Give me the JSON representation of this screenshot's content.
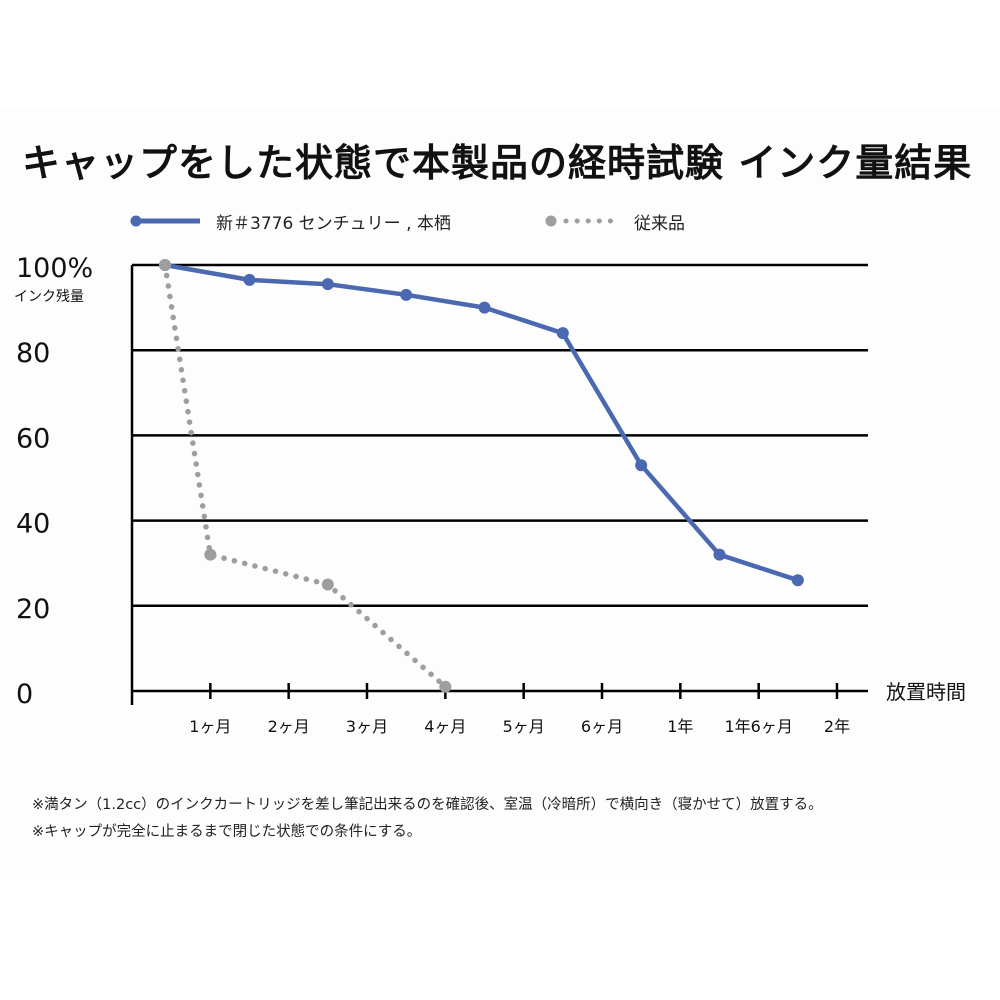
{
  "title": "キャップをした状態で本製品の経時試験 インク量結果",
  "colors": {
    "new_series": "#4a69b0",
    "old_series": "#9e9e9e",
    "axis": "#000000"
  },
  "legend": {
    "position": "top-left",
    "new_label": "新＃3776 センチュリー , 本栖",
    "old_label": "従来品"
  },
  "chart_data": {
    "type": "line",
    "ylabel": "インク残量",
    "xlabel": "放置時間",
    "ylim": [
      0,
      100
    ],
    "y_ticks": [
      "0",
      "20",
      "40",
      "60",
      "80",
      "100%"
    ],
    "categories": [
      "1ヶ月",
      "2ヶ月",
      "3ヶ月",
      "4ヶ月",
      "5ヶ月",
      "6ヶ月",
      "1年",
      "1年6ヶ月",
      "2年"
    ],
    "grid": true,
    "series": [
      {
        "name": "新＃3776 センチュリー , 本栖",
        "style": "solid",
        "points": [
          [
            0,
            100
          ],
          [
            1.5,
            96.5
          ],
          [
            2.5,
            95.5
          ],
          [
            3.5,
            93
          ],
          [
            4.5,
            90
          ],
          [
            5.5,
            84
          ],
          [
            6.5,
            53
          ],
          [
            7.5,
            32
          ],
          [
            8.5,
            26
          ]
        ]
      },
      {
        "name": "従来品",
        "style": "dotted",
        "points": [
          [
            0,
            100
          ],
          [
            1,
            32
          ],
          [
            2.5,
            25
          ],
          [
            4,
            1
          ]
        ]
      }
    ]
  },
  "notes": [
    "※満タン（1.2cc）のインクカートリッジを差し筆記出来るのを確認後、室温（冷暗所）で横向き（寝かせて）放置する。",
    "※キャップが完全に止まるまで閉じた状態での条件にする。"
  ]
}
